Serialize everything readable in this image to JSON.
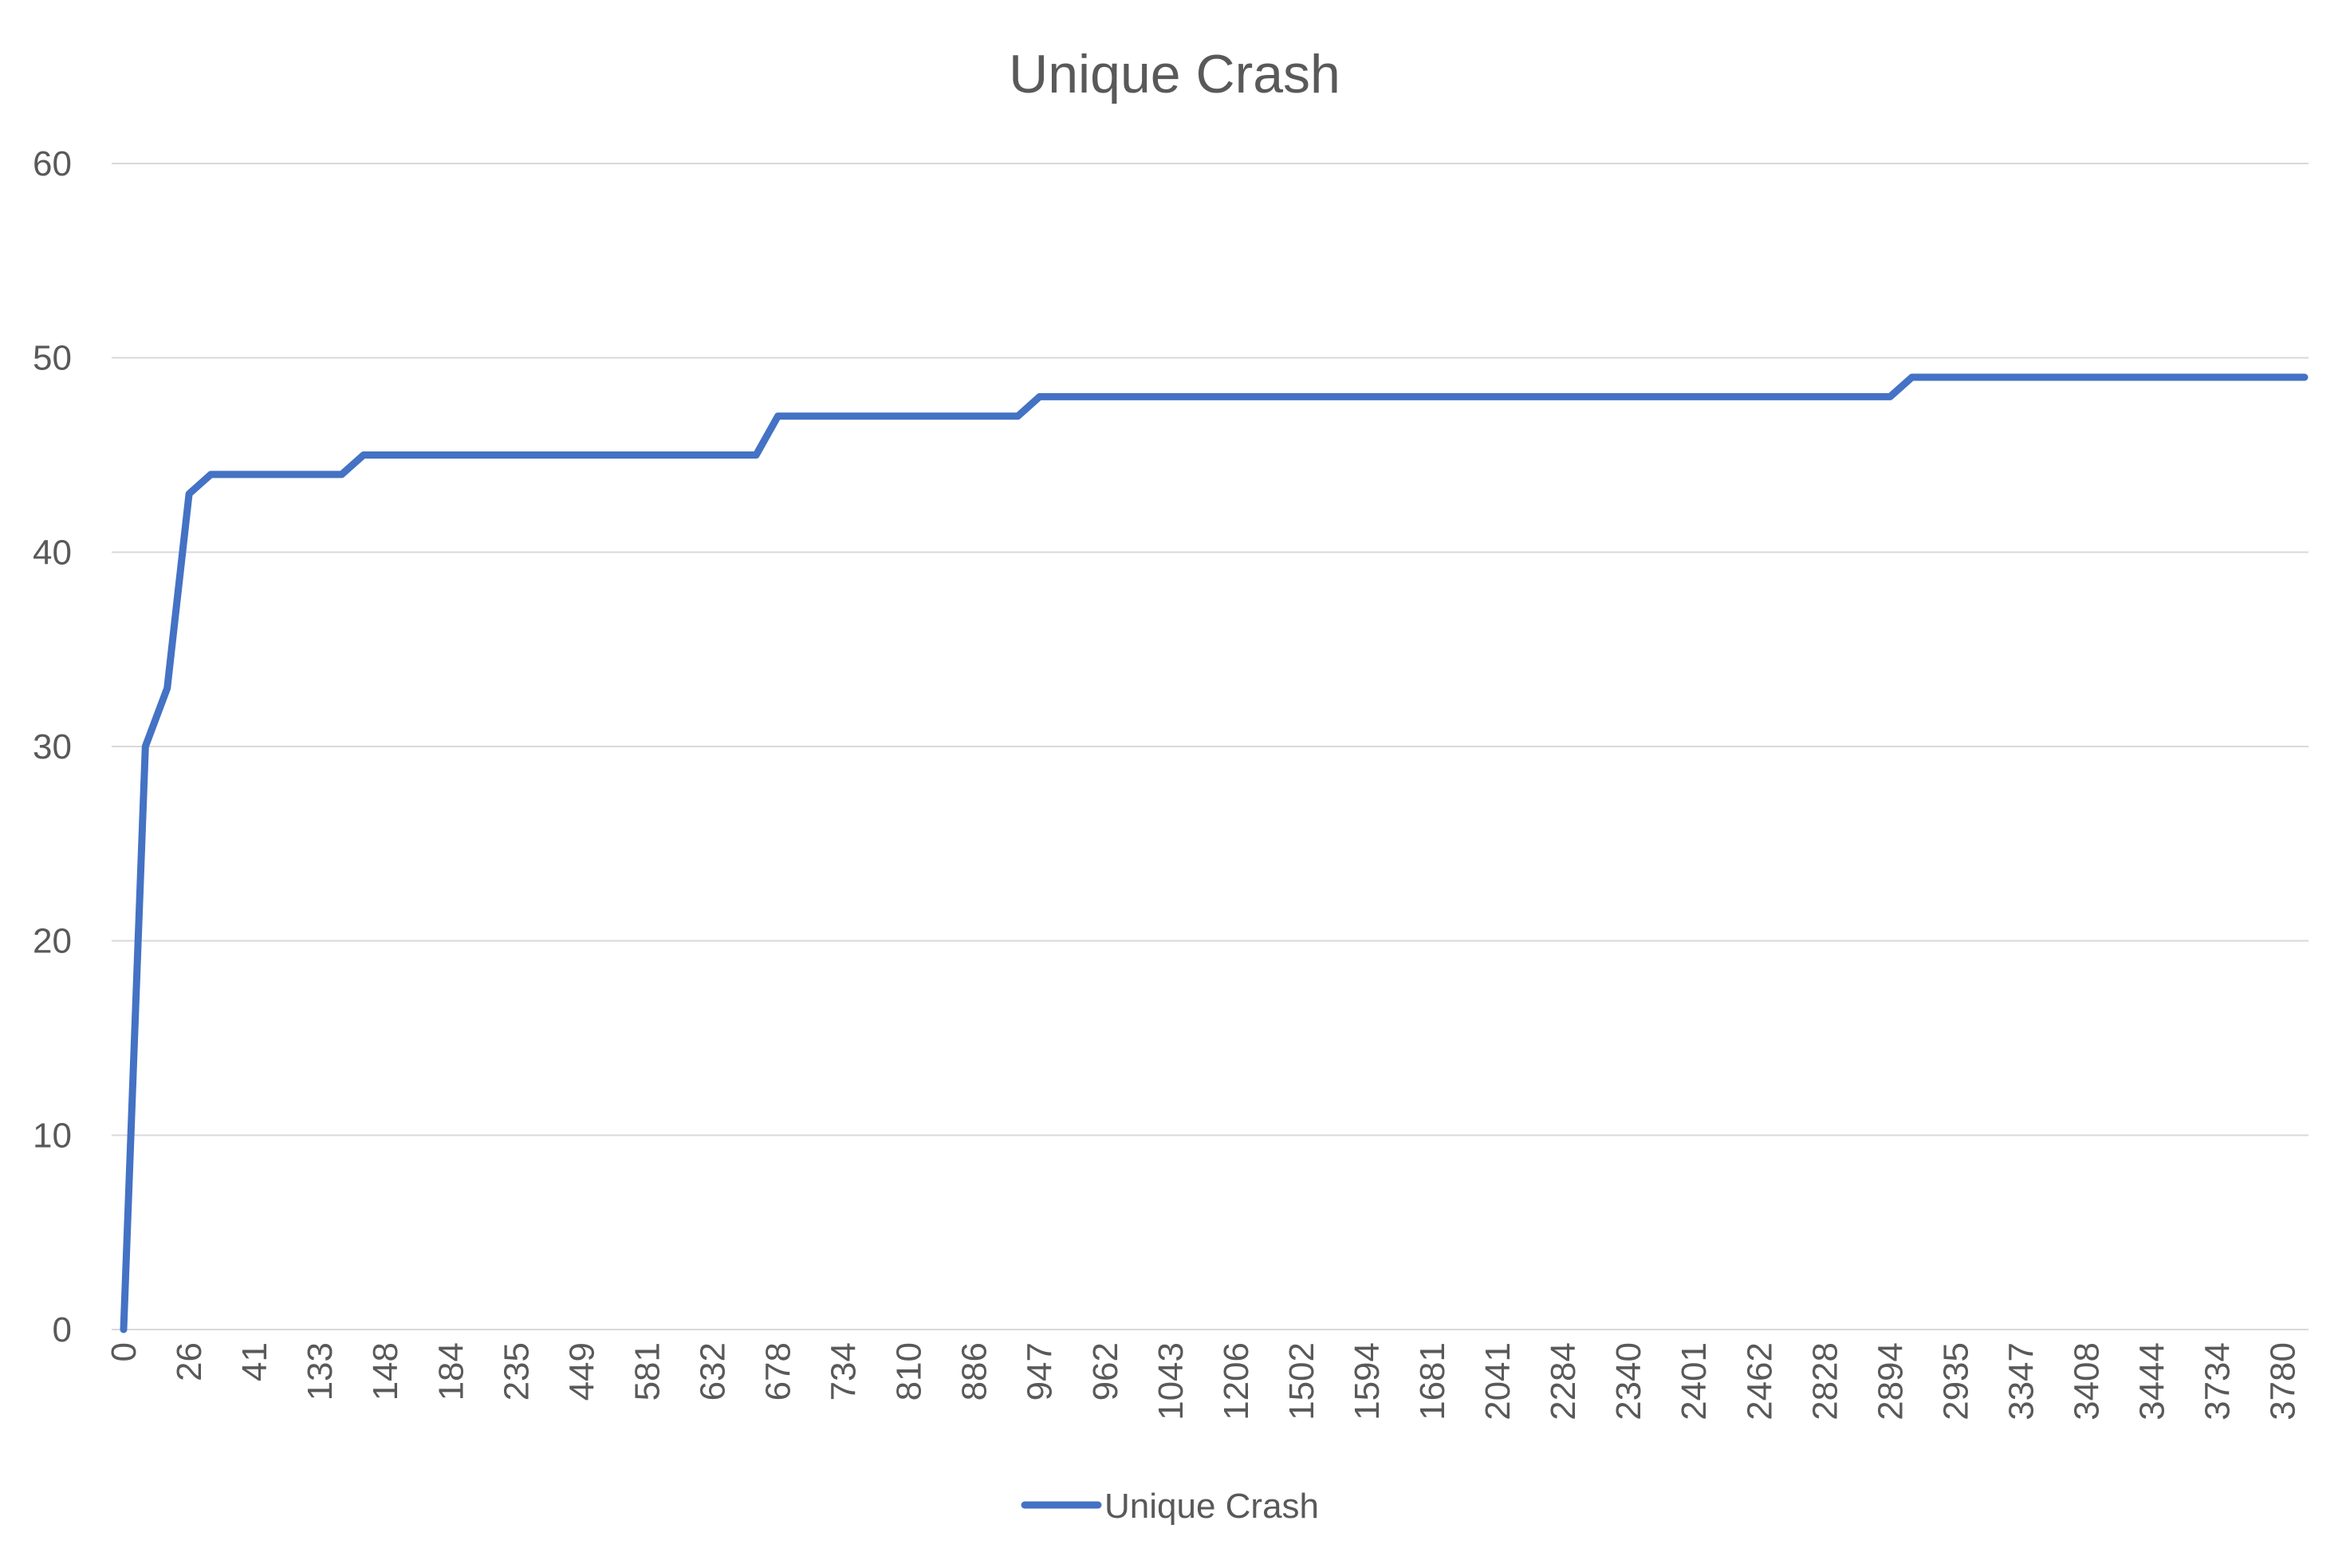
{
  "chart_data": {
    "type": "line",
    "title": "Unique Crash",
    "xlabel": "",
    "ylabel": "",
    "ylim": [
      0,
      60
    ],
    "yticks": [
      0,
      10,
      20,
      30,
      40,
      50,
      60
    ],
    "grid": "horizontal",
    "legend_position": "bottom",
    "x_tick_labels": [
      "0",
      "26",
      "41",
      "133",
      "148",
      "184",
      "235",
      "449",
      "581",
      "632",
      "678",
      "734",
      "810",
      "886",
      "947",
      "962",
      "1043",
      "1206",
      "1502",
      "1594",
      "1681",
      "2041",
      "2284",
      "2340",
      "2401",
      "2462",
      "2828",
      "2894",
      "2935",
      "3347",
      "3408",
      "3444",
      "3734",
      "3780"
    ],
    "series": [
      {
        "name": "Unique Crash",
        "color": "#4472c4",
        "values": [
          0,
          30,
          33,
          43,
          44,
          44,
          44,
          44,
          44,
          44,
          44,
          45,
          45,
          45,
          45,
          45,
          45,
          45,
          45,
          45,
          45,
          45,
          45,
          45,
          45,
          45,
          45,
          45,
          45,
          45,
          47,
          47,
          47,
          47,
          47,
          47,
          47,
          47,
          47,
          47,
          47,
          47,
          48,
          48,
          48,
          48,
          48,
          48,
          48,
          48,
          48,
          48,
          48,
          48,
          48,
          48,
          48,
          48,
          48,
          48,
          48,
          48,
          48,
          48,
          48,
          48,
          48,
          48,
          48,
          48,
          48,
          48,
          48,
          48,
          48,
          48,
          48,
          48,
          48,
          48,
          48,
          48,
          49,
          49,
          49,
          49,
          49,
          49,
          49,
          49,
          49,
          49,
          49,
          49,
          49,
          49,
          49,
          49,
          49,
          49,
          49
        ]
      }
    ]
  }
}
